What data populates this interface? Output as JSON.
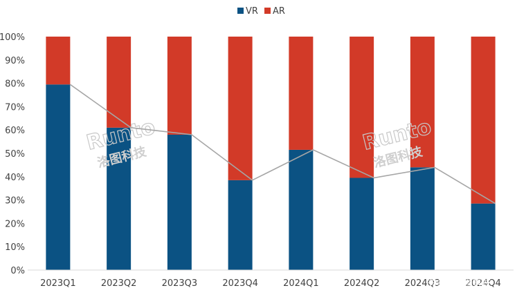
{
  "chart_data": {
    "type": "bar",
    "stacked": true,
    "categories": [
      "2023Q1",
      "2023Q2",
      "2023Q3",
      "2023Q4",
      "2024Q1",
      "2024Q2",
      "2024Q3",
      "2024Q4"
    ],
    "series": [
      {
        "name": "VR",
        "color": "#0b5283",
        "values": [
          79.5,
          61,
          58,
          38.5,
          51.5,
          39.5,
          44,
          28.5
        ]
      },
      {
        "name": "AR",
        "color": "#d23a28",
        "values": [
          20.5,
          39,
          42,
          61.5,
          48.5,
          60.5,
          56,
          71.5
        ]
      }
    ],
    "overlay_line": {
      "series": "VR",
      "color": "#a6a6a6"
    },
    "y_ticks": [
      "0%",
      "10%",
      "20%",
      "30%",
      "40%",
      "50%",
      "60%",
      "70%",
      "80%",
      "90%",
      "100%"
    ],
    "ylim": [
      0,
      100
    ],
    "legend_position": "top-center",
    "grid": false
  },
  "watermarks": [
    {
      "latin": "Runto",
      "cn": "洛图科技"
    },
    {
      "latin": "Runto",
      "cn": "洛图科技"
    }
  ],
  "footer_watermark": "头条@洛图科技"
}
